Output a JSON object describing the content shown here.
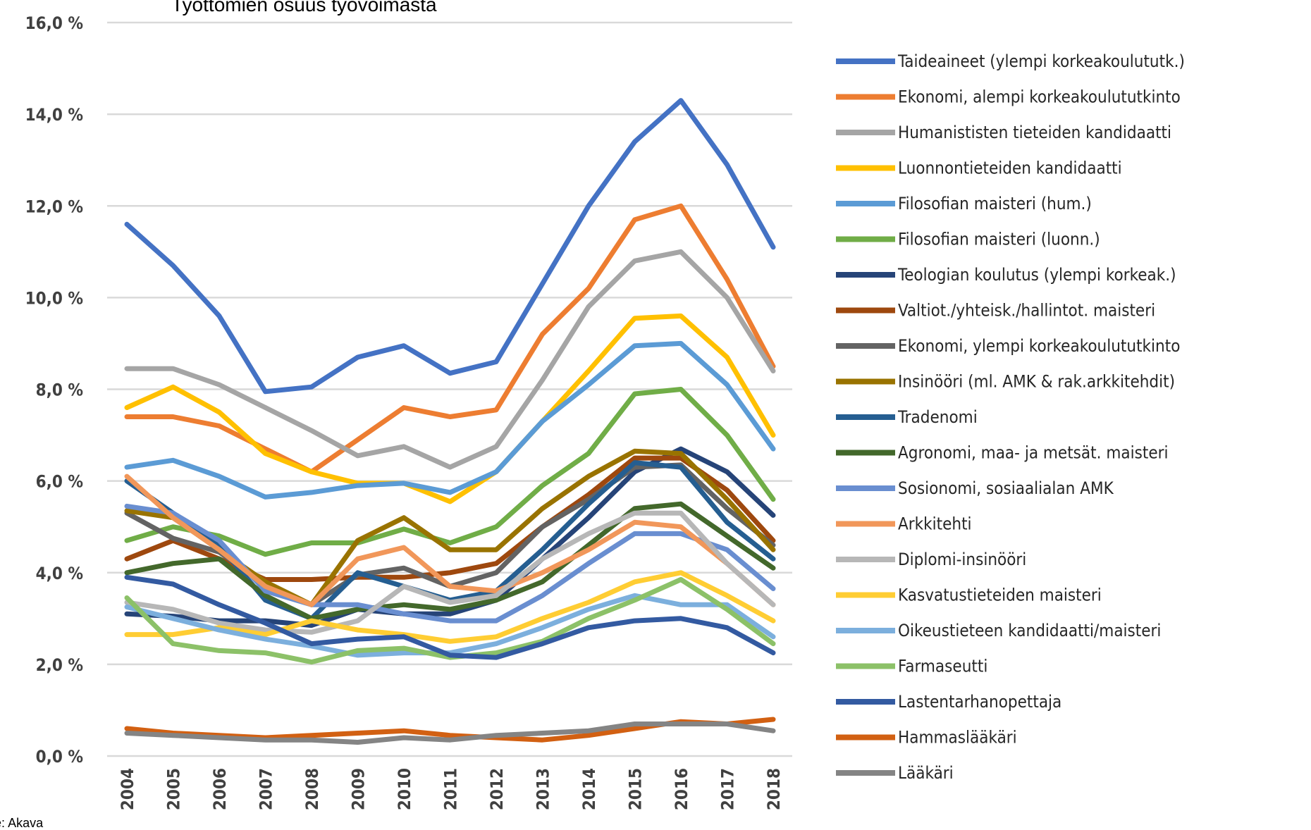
{
  "chart_data": {
    "type": "line",
    "title": "Työttömien osuus työvoimasta",
    "source": "Lähde: Akava",
    "categories": [
      "2004",
      "2005",
      "2006",
      "2007",
      "2008",
      "2009",
      "2010",
      "2011",
      "2012",
      "2013",
      "2014",
      "2015",
      "2016",
      "2017",
      "2018"
    ],
    "ylim": [
      0,
      16
    ],
    "yticks": [
      {
        "value": 0,
        "label": "0,0 %"
      },
      {
        "value": 2,
        "label": "2,0 %"
      },
      {
        "value": 4,
        "label": "4,0 %"
      },
      {
        "value": 6,
        "label": "6,0 %"
      },
      {
        "value": 8,
        "label": "8,0 %"
      },
      {
        "value": 10,
        "label": "10,0 %"
      },
      {
        "value": 12,
        "label": "12,0 %"
      },
      {
        "value": 14,
        "label": "14,0 %"
      },
      {
        "value": 16,
        "label": "16,0 %"
      }
    ],
    "grid": true,
    "legend": "right",
    "series": [
      {
        "name": "Taideaineet (ylempi korkeakoulututk.)",
        "color": "#4472c4",
        "values": [
          11.6,
          10.7,
          9.6,
          7.95,
          8.05,
          8.7,
          8.95,
          8.35,
          8.6,
          10.3,
          12.0,
          13.4,
          14.3,
          12.9,
          11.1
        ]
      },
      {
        "name": "Ekonomi, alempi korkeakoulututkinto",
        "color": "#ed7d31",
        "values": [
          7.4,
          7.4,
          7.2,
          6.7,
          6.2,
          6.9,
          7.6,
          7.4,
          7.55,
          9.2,
          10.2,
          11.7,
          12.0,
          10.4,
          8.5
        ]
      },
      {
        "name": "Humanististen tieteiden kandidaatti",
        "color": "#a5a5a5",
        "values": [
          8.45,
          8.45,
          8.1,
          7.6,
          7.1,
          6.55,
          6.75,
          6.3,
          6.75,
          8.2,
          9.8,
          10.8,
          11.0,
          10.0,
          8.4
        ]
      },
      {
        "name": "Luonnontieteiden kandidaatti",
        "color": "#ffc000",
        "values": [
          7.6,
          8.05,
          7.5,
          6.6,
          6.2,
          5.95,
          5.95,
          5.55,
          6.2,
          7.3,
          8.4,
          9.55,
          9.6,
          8.7,
          7.0
        ]
      },
      {
        "name": "Filosofian maisteri (hum.)",
        "color": "#5b9bd5",
        "values": [
          6.3,
          6.45,
          6.1,
          5.65,
          5.75,
          5.9,
          5.95,
          5.75,
          6.2,
          7.3,
          8.1,
          8.95,
          9.0,
          8.1,
          6.7
        ]
      },
      {
        "name": "Filosofian maisteri (luonn.)",
        "color": "#70ad47",
        "values": [
          4.7,
          5.0,
          4.8,
          4.4,
          4.65,
          4.65,
          4.95,
          4.65,
          5.0,
          5.9,
          6.6,
          7.9,
          8.0,
          7.0,
          5.6
        ]
      },
      {
        "name": "Teologian koulutus (ylempi korkeak.)",
        "color": "#264478",
        "values": [
          3.1,
          3.05,
          2.95,
          2.95,
          2.85,
          3.2,
          3.1,
          3.1,
          3.4,
          4.3,
          5.2,
          6.2,
          6.7,
          6.2,
          5.25
        ]
      },
      {
        "name": "Valtiot./yhteisk./hallintot. maisteri",
        "color": "#9e480e",
        "values": [
          4.3,
          4.7,
          4.3,
          3.85,
          3.85,
          3.9,
          3.9,
          4.0,
          4.2,
          5.0,
          5.7,
          6.5,
          6.5,
          5.8,
          4.7
        ]
      },
      {
        "name": "Ekonomi, ylempi korkeakoulututkinto",
        "color": "#636363",
        "values": [
          5.3,
          4.75,
          4.45,
          3.75,
          3.3,
          3.95,
          4.1,
          3.7,
          4.0,
          5.0,
          5.6,
          6.3,
          6.35,
          5.4,
          4.6
        ]
      },
      {
        "name": "Insinööri (ml. AMK & rak.arkkitehdit)",
        "color": "#997300",
        "values": [
          5.35,
          5.2,
          4.5,
          3.8,
          3.3,
          4.7,
          5.2,
          4.5,
          4.5,
          5.4,
          6.1,
          6.65,
          6.6,
          5.6,
          4.5
        ]
      },
      {
        "name": "Tradenomi",
        "color": "#255e91",
        "values": [
          6.0,
          5.3,
          4.6,
          3.4,
          3.0,
          4.0,
          3.7,
          3.4,
          3.6,
          4.5,
          5.5,
          6.4,
          6.3,
          5.1,
          4.3
        ]
      },
      {
        "name": "Agronomi, maa- ja metsät. maisteri",
        "color": "#43682b",
        "values": [
          4.0,
          4.2,
          4.3,
          3.5,
          3.0,
          3.2,
          3.3,
          3.2,
          3.4,
          3.8,
          4.6,
          5.4,
          5.5,
          4.8,
          4.1
        ]
      },
      {
        "name": "Sosionomi, sosiaalialan AMK",
        "color": "#698ed0",
        "values": [
          5.45,
          5.3,
          4.7,
          3.6,
          3.3,
          3.3,
          3.1,
          2.95,
          2.95,
          3.5,
          4.2,
          4.85,
          4.85,
          4.5,
          3.65
        ]
      },
      {
        "name": "Arkkitehti",
        "color": "#f1975a",
        "values": [
          6.1,
          5.2,
          4.5,
          3.7,
          3.3,
          4.3,
          4.55,
          3.7,
          3.6,
          4.0,
          4.5,
          5.1,
          5.0,
          4.2,
          3.3
        ]
      },
      {
        "name": "Diplomi-insinööri",
        "color": "#b7b7b7",
        "values": [
          3.35,
          3.2,
          2.9,
          2.75,
          2.7,
          2.95,
          3.7,
          3.35,
          3.5,
          4.3,
          4.85,
          5.3,
          5.3,
          4.2,
          3.3
        ]
      },
      {
        "name": "Kasvatustieteiden maisteri",
        "color": "#ffcd33",
        "values": [
          2.65,
          2.65,
          2.8,
          2.65,
          2.95,
          2.75,
          2.65,
          2.5,
          2.6,
          3.0,
          3.35,
          3.8,
          4.0,
          3.5,
          2.95
        ]
      },
      {
        "name": "Oikeustieteen kandidaatti/maisteri",
        "color": "#7cafdd",
        "values": [
          3.25,
          3.0,
          2.75,
          2.55,
          2.4,
          2.2,
          2.25,
          2.25,
          2.45,
          2.8,
          3.2,
          3.5,
          3.3,
          3.3,
          2.6
        ]
      },
      {
        "name": "Farmaseutti",
        "color": "#8cc168",
        "values": [
          3.45,
          2.45,
          2.3,
          2.25,
          2.05,
          2.3,
          2.35,
          2.15,
          2.25,
          2.5,
          3.0,
          3.4,
          3.85,
          3.2,
          2.45
        ]
      },
      {
        "name": "Lastentarhanopettaja",
        "color": "#335aa1",
        "values": [
          3.9,
          3.75,
          3.3,
          2.9,
          2.45,
          2.55,
          2.6,
          2.2,
          2.15,
          2.45,
          2.8,
          2.95,
          3.0,
          2.8,
          2.25
        ]
      },
      {
        "name": "Hammaslääkäri",
        "color": "#d26012",
        "values": [
          0.6,
          0.5,
          0.45,
          0.4,
          0.45,
          0.5,
          0.55,
          0.45,
          0.4,
          0.35,
          0.45,
          0.6,
          0.75,
          0.7,
          0.8
        ]
      },
      {
        "name": "Lääkäri",
        "color": "#848484",
        "values": [
          0.5,
          0.45,
          0.4,
          0.35,
          0.35,
          0.3,
          0.4,
          0.35,
          0.45,
          0.5,
          0.55,
          0.7,
          0.7,
          0.7,
          0.55
        ]
      }
    ]
  }
}
